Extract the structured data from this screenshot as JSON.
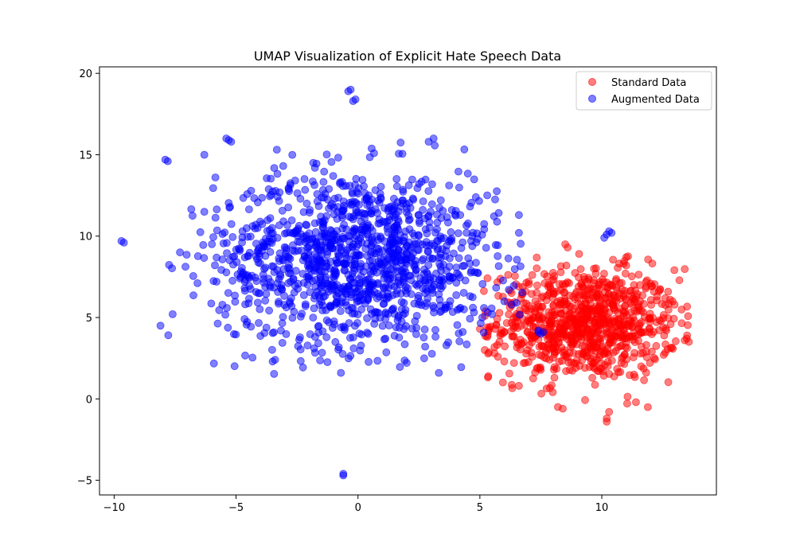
{
  "chart_data": {
    "type": "scatter",
    "title": "UMAP Visualization of Explicit Hate Speech Data",
    "xlabel": "",
    "ylabel": "",
    "xlim": [
      -10.6,
      14.7
    ],
    "ylim": [
      -5.9,
      20.4
    ],
    "xticks": [
      -10,
      -5,
      0,
      5,
      10
    ],
    "yticks": [
      -5,
      0,
      5,
      10,
      15,
      20
    ],
    "xtick_labels": [
      "−10",
      "−5",
      "0",
      "5",
      "10"
    ],
    "ytick_labels": [
      "−5",
      "0",
      "5",
      "10",
      "15",
      "20"
    ],
    "grid": false,
    "legend_position": "top-right",
    "series": [
      {
        "name": "Standard Data",
        "color": "#ff0000",
        "alpha": 0.5,
        "cluster": {
          "center": [
            9.3,
            4.6
          ],
          "spread": [
            1.9,
            1.7
          ],
          "n": 900,
          "xrange": [
            5.0,
            13.6
          ],
          "yrange": [
            -1.4,
            9.6
          ]
        },
        "points": [
          [
            8.5,
            9.5
          ],
          [
            8.6,
            9.3
          ],
          [
            10.2,
            -1.2
          ],
          [
            10.2,
            -1.4
          ],
          [
            8.2,
            -0.5
          ],
          [
            8.4,
            -0.6
          ],
          [
            11.4,
            -0.2
          ],
          [
            13.4,
            3.6
          ],
          [
            13.5,
            3.9
          ],
          [
            5.0,
            4.3
          ],
          [
            5.3,
            4.4
          ],
          [
            5.2,
            3.0
          ],
          [
            5.6,
            2.8
          ],
          [
            6.0,
            2.3
          ],
          [
            6.6,
            0.8
          ],
          [
            10.3,
            -0.8
          ],
          [
            10.9,
            8.3
          ],
          [
            11.0,
            8.2
          ],
          [
            12.8,
            6.1
          ],
          [
            12.9,
            6.0
          ],
          [
            6.3,
            6.5
          ],
          [
            6.6,
            6.9
          ],
          [
            7.0,
            7.2
          ]
        ]
      },
      {
        "name": "Augmented Data",
        "color": "#0000ff",
        "alpha": 0.5,
        "cluster": {
          "center": [
            0.0,
            8.6
          ],
          "spread": [
            2.9,
            2.7
          ],
          "n": 1300,
          "xrange": [
            -7.9,
            6.9
          ],
          "yrange": [
            1.5,
            15.9
          ]
        },
        "points": [
          [
            -0.3,
            19.0
          ],
          [
            -0.4,
            18.9
          ],
          [
            -0.1,
            18.4
          ],
          [
            -0.2,
            18.3
          ],
          [
            -0.6,
            -4.7
          ],
          [
            -0.6,
            -4.6
          ],
          [
            -9.6,
            9.6
          ],
          [
            -9.7,
            9.7
          ],
          [
            -8.1,
            4.5
          ],
          [
            -7.9,
            14.7
          ],
          [
            -7.8,
            14.6
          ],
          [
            -6.3,
            15.0
          ],
          [
            -5.4,
            16.0
          ],
          [
            -5.3,
            15.9
          ],
          [
            -5.2,
            15.8
          ],
          [
            10.3,
            10.3
          ],
          [
            10.4,
            10.2
          ],
          [
            10.2,
            10.1
          ],
          [
            10.1,
            9.9
          ],
          [
            7.4,
            4.1
          ],
          [
            7.5,
            4.0
          ],
          [
            7.6,
            4.1
          ],
          [
            7.4,
            4.2
          ],
          [
            -3.5,
            2.3
          ],
          [
            -3.4,
            2.4
          ],
          [
            -0.7,
            1.6
          ],
          [
            2.9,
            15.8
          ],
          [
            3.1,
            16.0
          ],
          [
            6.6,
            11.3
          ],
          [
            6.6,
            10.2
          ],
          [
            4.2,
            5.6
          ],
          [
            5.1,
            5.0
          ],
          [
            5.5,
            5.2
          ],
          [
            6.0,
            6.0
          ],
          [
            6.3,
            5.8
          ],
          [
            6.5,
            5.9
          ],
          [
            -7.6,
            5.2
          ],
          [
            -5.8,
            7.2
          ],
          [
            -7.3,
            9.0
          ],
          [
            -6.3,
            11.5
          ]
        ]
      }
    ]
  }
}
